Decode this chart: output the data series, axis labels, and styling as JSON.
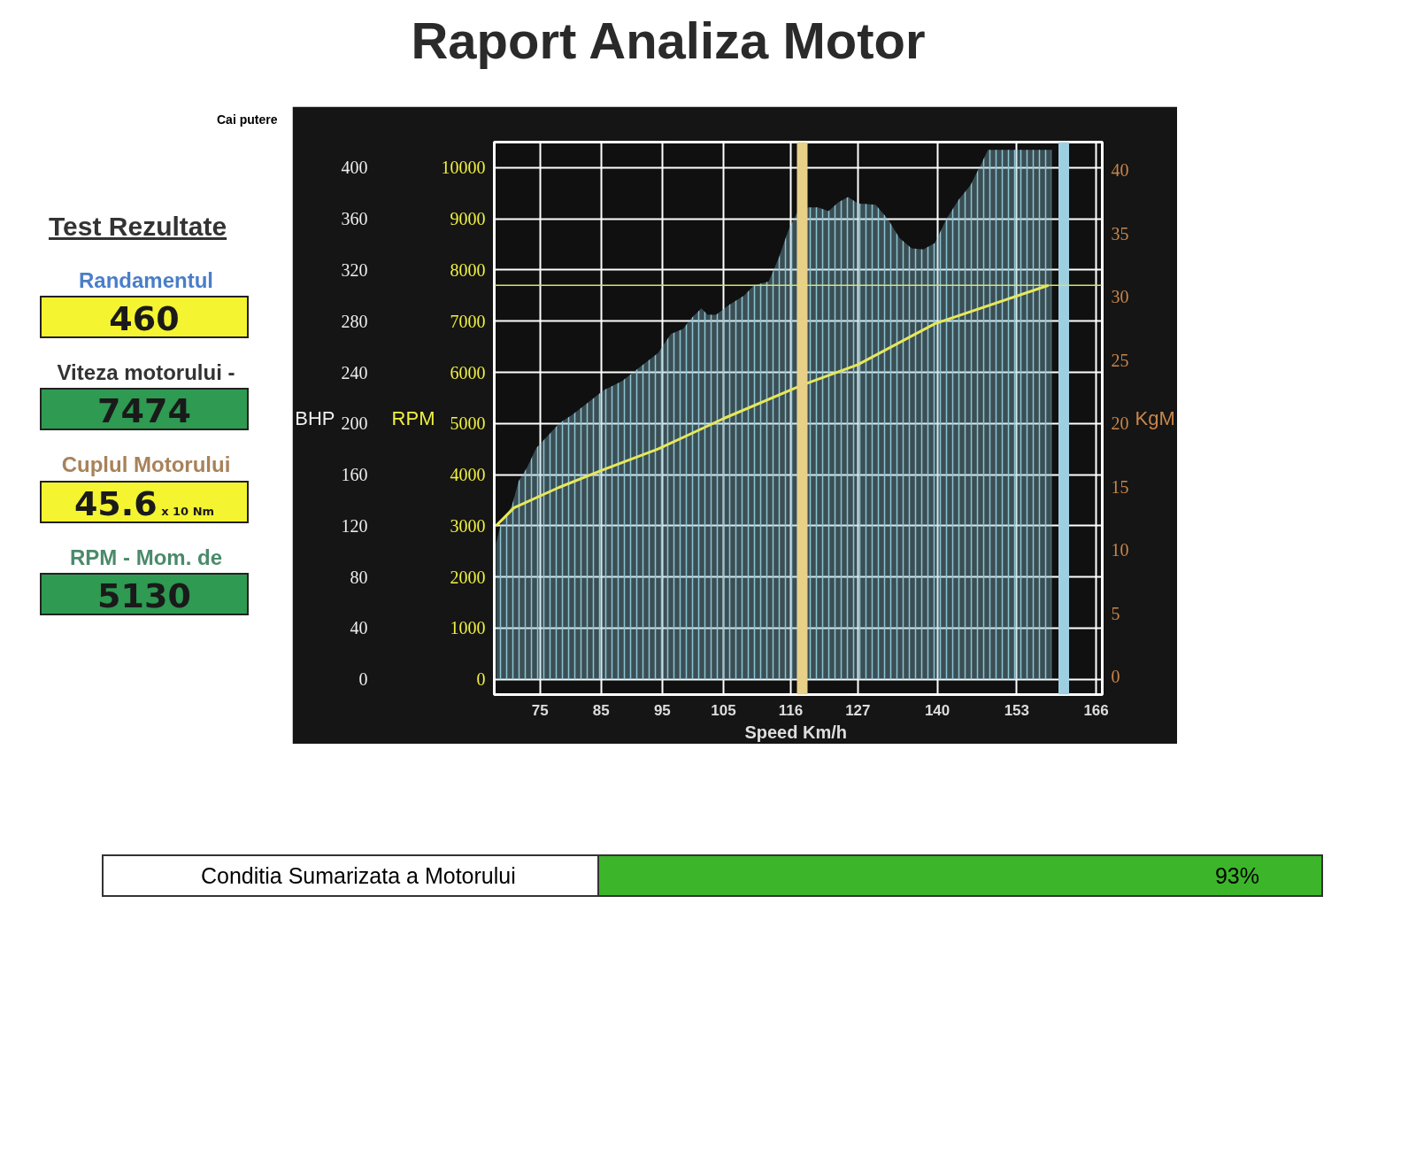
{
  "chart_data": {
    "type": "line",
    "title": "Raport Analiza Motor",
    "xlabel": "Speed  Km/h",
    "ylabel": "BHP",
    "y2label": "RPM",
    "y3label": "KgM",
    "annotations": [
      "Cai putere",
      "Test Rezultate",
      "Randamentul",
      "460",
      "Viteza motorului -",
      "7474",
      "Cuplul Motorului",
      "45.6",
      "x 10 Nm",
      "RPM - Mom. de",
      "5130",
      "Conditia Sumarizata a Motorului",
      "93%"
    ],
    "series": [
      {
        "type": "area",
        "color": "#8cc4d4",
        "axis": "y",
        "x": [
          67.8,
          68.5,
          70.4,
          71.5,
          72.9,
          74.4,
          76.6,
          78.1,
          80.3,
          82.5,
          85.4,
          88.4,
          91.3,
          94.3,
          96.4,
          98.4,
          99.7,
          101.4,
          102.4,
          103.8,
          106.0,
          108.4,
          110.0,
          112.4,
          114.1,
          115.7,
          117.3,
          118.9,
          120.5,
          122.2,
          123.8,
          125.4,
          127.0,
          129.9,
          131.9,
          133.8,
          135.8,
          137.7,
          139.6,
          141.5,
          143.5,
          145.4,
          147.3,
          148.3,
          153.0,
          158.7
        ],
        "values": [
          106,
          120,
          136,
          155,
          166,
          181,
          192,
          200,
          207,
          215,
          226,
          233,
          244,
          255,
          270,
          274,
          282,
          290,
          285,
          285,
          293,
          300,
          308,
          311,
          330,
          352,
          367,
          369,
          369,
          366,
          373,
          377,
          372,
          371,
          360,
          345,
          337,
          336,
          341,
          360,
          375,
          386,
          404,
          414,
          414,
          414
        ]
      },
      {
        "color": "#e6e85a",
        "axis": "y2",
        "x": [
          67.8,
          70.7,
          78.1,
          85.4,
          94.3,
          105.1,
          117.9,
          127.0,
          139.6,
          158.2
        ],
        "values": [
          3000,
          3350,
          3750,
          4100,
          4500,
          5100,
          5750,
          6150,
          6950,
          7700
        ]
      }
    ],
    "xlim": [
      67.5,
      167
    ],
    "xticks": [
      75,
      85,
      95,
      105,
      116,
      127,
      140,
      153,
      166
    ],
    "ylim": [
      -12,
      420
    ],
    "yticks": [
      0,
      40,
      80,
      120,
      160,
      200,
      240,
      280,
      320,
      360,
      400
    ],
    "y2lim": [
      -300,
      10500
    ],
    "y2ticks": [
      0,
      1000,
      2000,
      3000,
      4000,
      5000,
      6000,
      7000,
      8000,
      9000,
      10000
    ],
    "y3lim": [
      -1.4,
      42.2
    ],
    "y3ticks": [
      0,
      5,
      10,
      15,
      20,
      25,
      30,
      35,
      40
    ],
    "ref_lines": [
      {
        "axis": "x",
        "value": 117.9,
        "color": "#e8d088"
      },
      {
        "axis": "x",
        "value": 160.7,
        "color": "#9ecfe0"
      },
      {
        "axis": "y",
        "value": 308,
        "color": "#d8e070"
      }
    ],
    "grid": true
  }
}
